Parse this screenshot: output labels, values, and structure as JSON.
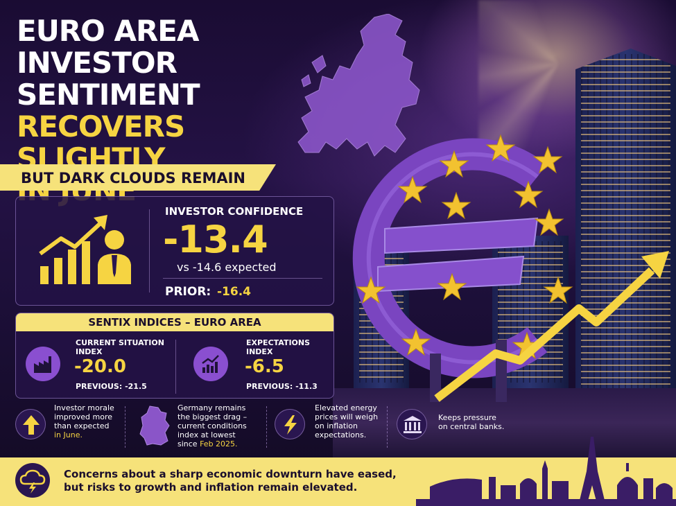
{
  "headline": {
    "line1": "EURO AREA",
    "line2": "INVESTOR SENTIMENT",
    "line3": "RECOVERS SLIGHTLY",
    "line4": "IN JUNE"
  },
  "subheadline": "BUT DARK CLOUDS REMAIN",
  "confidence": {
    "label": "INVESTOR CONFIDENCE",
    "value": "-13.4",
    "expected": "vs -14.6 expected",
    "prior_label": "PRIOR:",
    "prior_value": "-16.4"
  },
  "sentix": {
    "heading": "SENTIX INDICES – EURO AREA",
    "current": {
      "label_line1": "CURRENT SITUATION",
      "label_line2": "INDEX",
      "value": "-20.0",
      "previous": "PREVIOUS: -21.5"
    },
    "expectations": {
      "label_line1": "EXPECTATIONS",
      "label_line2": "INDEX",
      "value": "-6.5",
      "previous": "PREVIOUS: -11.3"
    }
  },
  "insights": [
    {
      "icon": "arrow-up-icon",
      "lines": [
        "Investor morale",
        "improved more",
        "than expected"
      ],
      "highlight": "in June."
    },
    {
      "icon": "germany-map-icon",
      "lines": [
        "Germany remains",
        "the biggest drag –",
        "current conditions",
        "index at lowest"
      ],
      "prefix_last": "since ",
      "highlight": "Feb 2025."
    },
    {
      "icon": "lightning-icon",
      "lines": [
        "Elevated energy",
        "prices will weigh",
        "on inflation",
        "expectations."
      ]
    },
    {
      "icon": "bank-icon",
      "lines": [
        "Keeps pressure",
        "on central banks."
      ]
    }
  ],
  "footer": {
    "icon": "storm-cloud-icon",
    "line1": "Concerns about a sharp economic downturn have eased,",
    "line2": "but risks to growth and inflation remain elevated."
  },
  "colors": {
    "background": "#150a2a",
    "accent_yellow": "#f6d442",
    "banner_yellow": "#f6e27a",
    "purple": "#8a4fd0",
    "dark_text": "#1a0e2c"
  }
}
